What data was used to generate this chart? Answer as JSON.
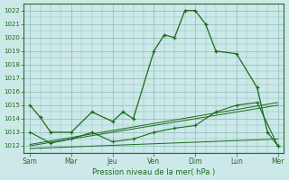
{
  "background_color": "#cce8e8",
  "grid_color": "#88bbbb",
  "line_color": "#1a6b1a",
  "spine_color": "#2d6b2d",
  "title": "Pression niveau de la mer( hPa )",
  "ylim": [
    1011.5,
    1022.5
  ],
  "yticks": [
    1012,
    1013,
    1014,
    1015,
    1016,
    1017,
    1018,
    1019,
    1020,
    1021,
    1022
  ],
  "day_labels": [
    "Sam",
    "Mar",
    "Jeu",
    "Ven",
    "Dim",
    "Lun",
    "Mer"
  ],
  "day_positions": [
    0,
    1,
    2,
    3,
    4,
    5,
    6
  ],
  "xlim": [
    -0.15,
    6.15
  ],
  "line1_x": [
    0,
    0.25,
    0.5,
    1.0,
    1.5,
    2.0,
    2.25,
    2.5,
    3.0,
    3.25,
    3.5,
    3.75,
    4.0,
    4.25,
    4.5,
    5.0,
    5.5,
    5.75,
    6.0
  ],
  "line1_y": [
    1015.0,
    1014.1,
    1013.0,
    1013.0,
    1014.5,
    1013.8,
    1014.5,
    1014.0,
    1019.0,
    1020.2,
    1020.0,
    1022.0,
    1022.0,
    1021.0,
    1019.0,
    1018.8,
    1016.3,
    1013.0,
    1012.0
  ],
  "line2_x": [
    0,
    0.5,
    1.0,
    1.5,
    2.0,
    2.5,
    3.0,
    3.5,
    4.0,
    4.5,
    5.0,
    5.5,
    6.0
  ],
  "line2_y": [
    1013.0,
    1012.2,
    1012.5,
    1013.0,
    1012.3,
    1012.5,
    1013.0,
    1013.3,
    1013.5,
    1014.5,
    1015.0,
    1015.2,
    1012.0
  ],
  "line3_x": [
    0,
    6.0
  ],
  "line3_y": [
    1012.1,
    1015.2
  ],
  "line4_x": [
    0,
    6.0
  ],
  "line4_y": [
    1012.0,
    1015.0
  ],
  "line5_x": [
    0,
    6.0
  ],
  "line5_y": [
    1011.8,
    1012.5
  ]
}
